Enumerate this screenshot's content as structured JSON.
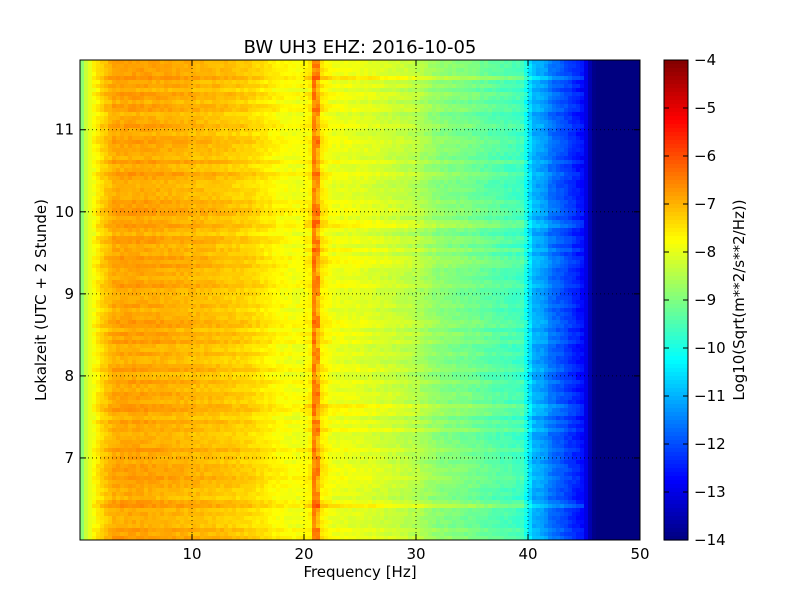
{
  "chart_data": {
    "type": "heatmap",
    "title": "BW UH3 EHZ: 2016-10-05",
    "xlabel": "Frequency [Hz]",
    "ylabel": "Lokalzeit (UTC + 2 Stunde)",
    "colorbar_label": "Log10(Sqrt(m**2/s**2/Hz))",
    "xlim": [
      0,
      50
    ],
    "ylim": [
      11.85,
      6.0
    ],
    "x_ticks": [
      10,
      20,
      30,
      40,
      50
    ],
    "y_ticks": [
      7,
      8,
      9,
      10,
      11
    ],
    "color_range": [
      -14,
      -4
    ],
    "colorbar_ticks": [
      -4,
      -5,
      -6,
      -7,
      -8,
      -9,
      -10,
      -11,
      -12,
      -13,
      -14
    ],
    "colormap": "jet",
    "grid": true,
    "spectrum_profile": {
      "frequency_hz": [
        0,
        0.5,
        1,
        2,
        3,
        5,
        8,
        12,
        15,
        17,
        18,
        19.5,
        20.5,
        21,
        21.5,
        22.5,
        25,
        28,
        30,
        32,
        35,
        37,
        39.5,
        40.5,
        41.5,
        42,
        43,
        44,
        45,
        45.5,
        46,
        50
      ],
      "level_log10": [
        -9.2,
        -8.3,
        -7.9,
        -7.3,
        -6.9,
        -6.85,
        -6.95,
        -7.1,
        -7.3,
        -7.6,
        -7.75,
        -7.85,
        -7.7,
        -6.6,
        -7.5,
        -7.9,
        -8.0,
        -8.25,
        -8.45,
        -8.85,
        -9.1,
        -9.35,
        -9.6,
        -11.0,
        -11.2,
        -11.6,
        -11.9,
        -12.3,
        -12.7,
        -13.5,
        -14.0,
        -14.0
      ]
    },
    "peak_line": {
      "frequency_hz": 21,
      "level_log10": -6.5
    }
  }
}
